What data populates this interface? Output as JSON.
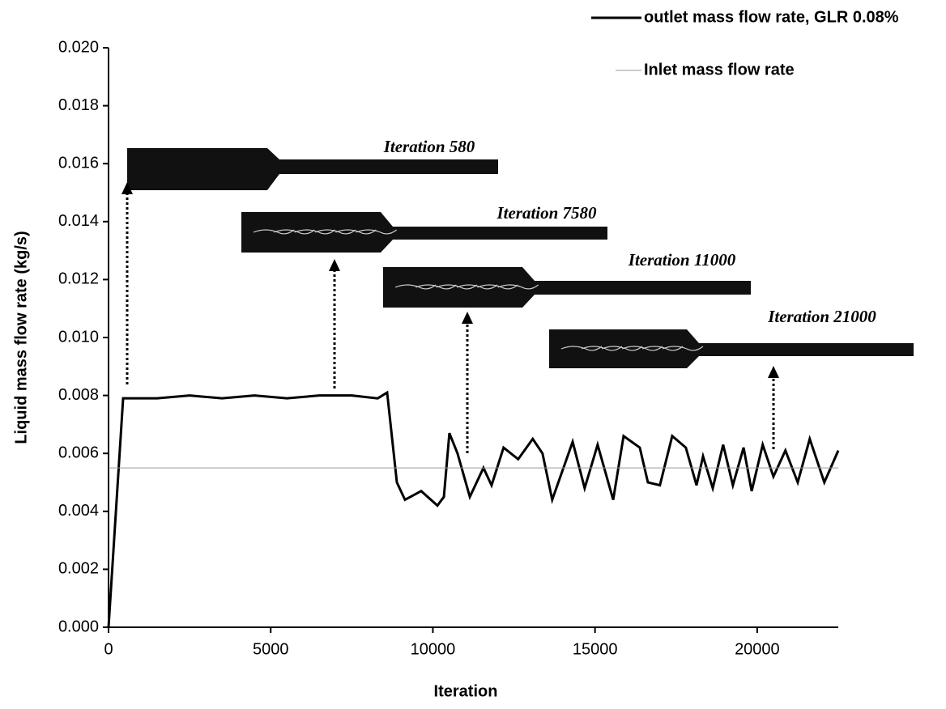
{
  "chart_data": {
    "type": "line",
    "x_label": "Iteration",
    "y_label": "Liquid mass flow rate (kg/s)",
    "xlim": [
      0,
      22500
    ],
    "xticks": [
      0,
      5000,
      10000,
      15000,
      20000
    ],
    "ylim": [
      0,
      0.02
    ],
    "yticks": [
      {
        "value": 0,
        "label": "0.000"
      },
      0.002,
      0.004,
      0.006,
      0.008,
      {
        "value": 0.01,
        "label": "0.010"
      },
      0.012,
      0.014,
      0.016,
      0.018,
      {
        "value": 0.02,
        "label": "0.020"
      }
    ],
    "legend": "top-right",
    "series": [
      {
        "name": "outlet mass flow rate, GLR 0.08%",
        "color": "#000000",
        "x": [
          0,
          450,
          1500,
          2500,
          3500,
          4500,
          5500,
          6500,
          7500,
          8300,
          8590,
          8890,
          9140,
          9640,
          10140,
          10340,
          10510,
          10760,
          11140,
          11560,
          11810,
          12180,
          12630,
          13080,
          13380,
          13680,
          14310,
          14680,
          15080,
          15560,
          15880,
          16380,
          16630,
          17000,
          17380,
          17800,
          18130,
          18330,
          18630,
          18950,
          19250,
          19580,
          19830,
          20170,
          20500,
          20870,
          21250,
          21620,
          22070,
          22500
        ],
        "values": [
          0,
          0.0079,
          0.0079,
          0.008,
          0.0079,
          0.008,
          0.0079,
          0.008,
          0.008,
          0.0079,
          0.0081,
          0.005,
          0.0044,
          0.0047,
          0.0042,
          0.0045,
          0.0067,
          0.006,
          0.0045,
          0.0055,
          0.0049,
          0.0062,
          0.0058,
          0.0065,
          0.006,
          0.0044,
          0.0064,
          0.0048,
          0.0063,
          0.0044,
          0.0066,
          0.0062,
          0.005,
          0.0049,
          0.0066,
          0.0062,
          0.0049,
          0.0059,
          0.0048,
          0.0063,
          0.0049,
          0.0062,
          0.0047,
          0.0063,
          0.0052,
          0.0061,
          0.005,
          0.0065,
          0.005,
          0.0061
        ]
      },
      {
        "name": "Inlet mass flow rate",
        "color": "#999999",
        "x": [
          0,
          22500
        ],
        "values": [
          0.0055,
          0.0055
        ]
      }
    ],
    "annotations": [
      {
        "text": "Iteration 580"
      },
      {
        "text": "Iteration 7580"
      },
      {
        "text": "Iteration 11000"
      },
      {
        "text": "Iteration 21000"
      }
    ]
  }
}
